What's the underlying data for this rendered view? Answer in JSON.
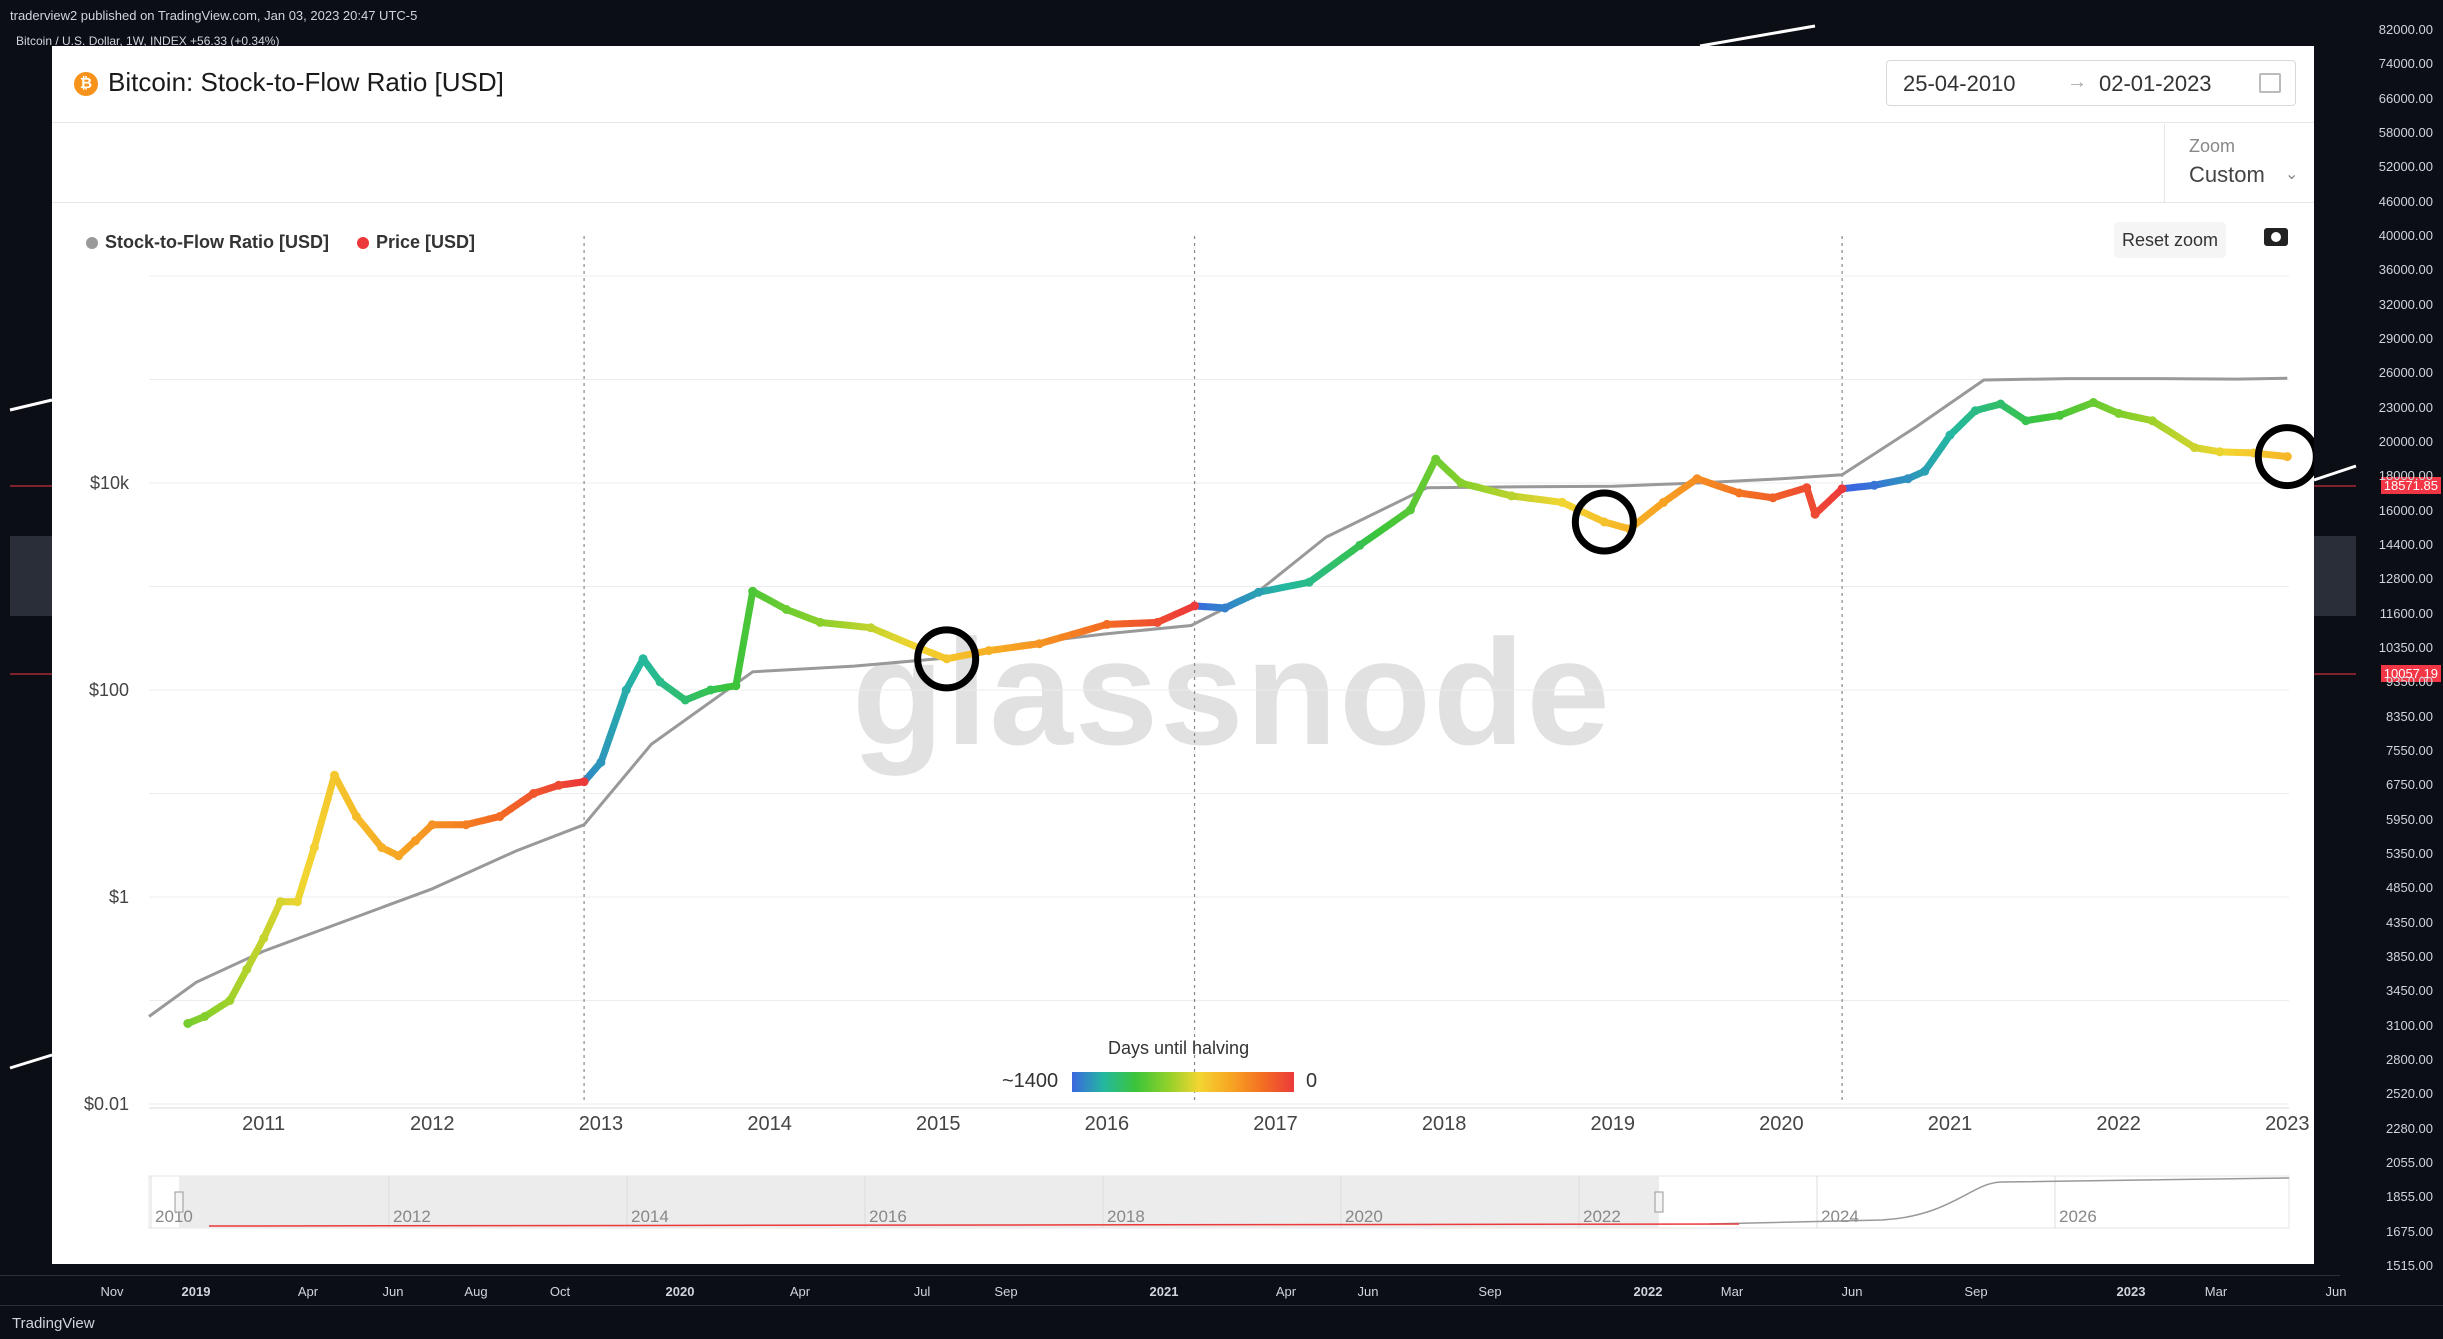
{
  "tv_header": {
    "published": "traderview2 published on TradingView.com, Jan 03, 2023 20:47 UTC-5",
    "symbol_line": "Bitcoin / U.S. Dollar, 1W, INDEX  +56.33 (+0.34%)"
  },
  "tv_price_axis": {
    "ticks": [
      "82000.00",
      "74000.00",
      "66000.00",
      "58000.00",
      "52000.00",
      "46000.00",
      "40000.00",
      "36000.00",
      "32000.00",
      "29000.00",
      "26000.00",
      "23000.00",
      "20000.00",
      "18000.00",
      "16000.00",
      "14400.00",
      "12800.00",
      "11600.00",
      "10350.00",
      "9350.00",
      "8350.00",
      "7550.00",
      "6750.00",
      "5950.00",
      "5350.00",
      "4850.00",
      "4350.00",
      "3850.00",
      "3450.00",
      "3100.00",
      "2800.00",
      "2520.00",
      "2280.00",
      "2055.00",
      "1855.00",
      "1675.00",
      "1515.00"
    ],
    "current_tag": "18571.85",
    "secondary_tag": "10057.19"
  },
  "tv_time_axis": {
    "ticks": [
      {
        "label": "Nov",
        "bold": false
      },
      {
        "label": "2019",
        "bold": true
      },
      {
        "label": "Apr",
        "bold": false
      },
      {
        "label": "Jun",
        "bold": false
      },
      {
        "label": "Aug",
        "bold": false
      },
      {
        "label": "Oct",
        "bold": false
      },
      {
        "label": "2020",
        "bold": true
      },
      {
        "label": "Apr",
        "bold": false
      },
      {
        "label": "Jul",
        "bold": false
      },
      {
        "label": "Sep",
        "bold": false
      },
      {
        "label": "2021",
        "bold": true
      },
      {
        "label": "Apr",
        "bold": false
      },
      {
        "label": "Jun",
        "bold": false
      },
      {
        "label": "Sep",
        "bold": false
      },
      {
        "label": "2022",
        "bold": true
      },
      {
        "label": "Mar",
        "bold": false
      },
      {
        "label": "Jun",
        "bold": false
      },
      {
        "label": "Sep",
        "bold": false
      },
      {
        "label": "2023",
        "bold": true
      },
      {
        "label": "Mar",
        "bold": false
      },
      {
        "label": "Jun",
        "bold": false
      }
    ]
  },
  "tv_footer": {
    "brand": "TradingView"
  },
  "panel": {
    "title": "Bitcoin: Stock-to-Flow Ratio [USD]",
    "date_from": "25-04-2010",
    "date_arrow": "→",
    "date_to": "02-01-2023",
    "zoom_label": "Zoom",
    "zoom_value": "Custom",
    "reset_label": "Reset zoom",
    "watermark": "glassnode",
    "colorbar_title": "Days until halving",
    "colorbar_min": "~1400",
    "colorbar_max": "0"
  },
  "colors": {
    "s2f_line": "#999999",
    "price_legend": "#ec3a3a",
    "halving_gradient": [
      "#3a67e0",
      "#24b8a0",
      "#3bc43b",
      "#8ed02a",
      "#f3d531",
      "#f7a623",
      "#f36f22",
      "#ec3a3a"
    ]
  },
  "chart_data": {
    "type": "line",
    "title": "Bitcoin: Stock-to-Flow Ratio [USD]",
    "y_scale": "log",
    "y_ticks": [
      {
        "value": 0.01,
        "label": "$0.01"
      },
      {
        "value": 1,
        "label": "$1"
      },
      {
        "value": 100,
        "label": "$100"
      },
      {
        "value": 10000,
        "label": "$10k"
      }
    ],
    "x_ticks": [
      "2011",
      "2012",
      "2013",
      "2014",
      "2015",
      "2016",
      "2017",
      "2018",
      "2019",
      "2020",
      "2021",
      "2022",
      "2023"
    ],
    "xlim": [
      2010.32,
      2023.01
    ],
    "ylim": [
      0.01,
      1000000
    ],
    "legend": [
      {
        "name": "Stock-to-Flow Ratio [USD]",
        "color": "#999999"
      },
      {
        "name": "Price [USD]",
        "color": "#ec3a3a"
      }
    ],
    "legend_position": "top-left",
    "grid": "horizontal",
    "halvings": [
      2012.9,
      2016.52,
      2020.36
    ],
    "circled_points": [
      {
        "x": 2015.05,
        "y": 200
      },
      {
        "x": 2018.95,
        "y": 4200
      },
      {
        "x": 2023.0,
        "y": 18000
      }
    ],
    "series": [
      {
        "name": "Stock-to-Flow Ratio [USD]",
        "x": [
          2010.32,
          2010.6,
          2011.0,
          2011.5,
          2012.0,
          2012.5,
          2012.9,
          2013.3,
          2013.9,
          2014.5,
          2015.0,
          2015.5,
          2016.0,
          2016.5,
          2016.9,
          2017.3,
          2017.9,
          2018.5,
          2019.0,
          2019.5,
          2020.0,
          2020.36,
          2020.8,
          2021.2,
          2021.7,
          2022.2,
          2022.7,
          2023.0
        ],
        "values": [
          0.07,
          0.15,
          0.3,
          0.6,
          1.2,
          2.8,
          5,
          30,
          150,
          170,
          200,
          280,
          350,
          420,
          900,
          3000,
          9000,
          9200,
          9300,
          10000,
          11000,
          12000,
          35000,
          99000,
          102000,
          102000,
          101000,
          103000
        ]
      },
      {
        "name": "Price [USD]",
        "x": [
          2010.55,
          2010.65,
          2010.8,
          2010.9,
          2011.0,
          2011.1,
          2011.2,
          2011.3,
          2011.42,
          2011.55,
          2011.7,
          2011.8,
          2011.9,
          2012.0,
          2012.2,
          2012.4,
          2012.6,
          2012.75,
          2012.9,
          2013.0,
          2013.15,
          2013.25,
          2013.35,
          2013.5,
          2013.65,
          2013.8,
          2013.9,
          2014.1,
          2014.3,
          2014.6,
          2014.9,
          2015.05,
          2015.3,
          2015.6,
          2016.0,
          2016.3,
          2016.52,
          2016.7,
          2016.9,
          2017.2,
          2017.5,
          2017.8,
          2017.95,
          2018.1,
          2018.4,
          2018.7,
          2018.95,
          2019.1,
          2019.3,
          2019.5,
          2019.75,
          2019.95,
          2020.15,
          2020.2,
          2020.36,
          2020.55,
          2020.75,
          2020.85,
          2021.0,
          2021.15,
          2021.3,
          2021.45,
          2021.65,
          2021.85,
          2022.0,
          2022.2,
          2022.45,
          2022.6,
          2022.8,
          2023.0
        ],
        "values": [
          0.06,
          0.07,
          0.1,
          0.2,
          0.4,
          0.9,
          0.9,
          3,
          15,
          6,
          3,
          2.5,
          3.5,
          5,
          5,
          6,
          10,
          12,
          13,
          20,
          100,
          200,
          120,
          80,
          100,
          110,
          900,
          600,
          450,
          400,
          250,
          200,
          240,
          280,
          430,
          450,
          650,
          620,
          880,
          1100,
          2500,
          5500,
          17000,
          10000,
          7500,
          6500,
          4200,
          3600,
          6500,
          11000,
          8000,
          7200,
          9000,
          5000,
          8800,
          9500,
          11000,
          13000,
          29000,
          50000,
          58000,
          40000,
          45000,
          60000,
          47000,
          40000,
          22000,
          20000,
          19500,
          18000
        ]
      }
    ]
  }
}
